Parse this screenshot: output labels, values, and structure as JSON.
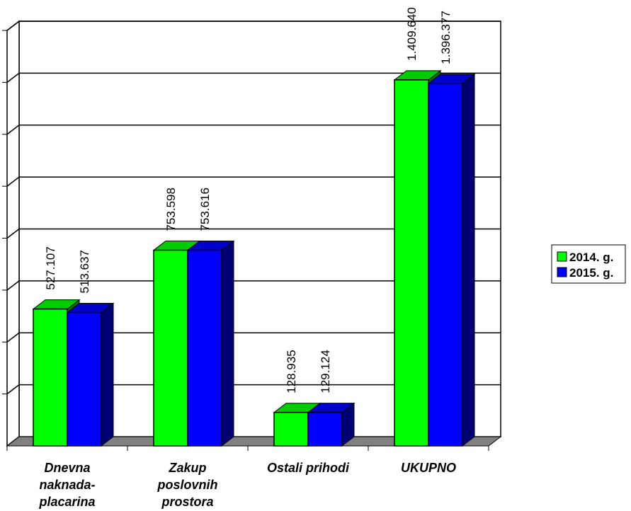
{
  "chart_data": {
    "type": "bar",
    "style": "3d-clustered-column",
    "categories": [
      [
        "Dnevna",
        "naknada-",
        "placarina"
      ],
      [
        "Zakup",
        "poslovnih",
        "prostora"
      ],
      [
        "Ostali prihodi"
      ],
      [
        "UKUPNO"
      ]
    ],
    "series": [
      {
        "name": "2014. g.",
        "color": "#00ff00",
        "values": [
          527107,
          753598,
          128935,
          1409640
        ],
        "labels": [
          "527.107",
          "753.598",
          "128.935",
          "1.409.640"
        ]
      },
      {
        "name": "2015. g.",
        "color": "#0000ff",
        "values": [
          513637,
          753616,
          129124,
          1396377
        ],
        "labels": [
          "513.637",
          "753.616",
          "129.124",
          "1.396.377"
        ]
      }
    ],
    "ylim": [
      0,
      1600000
    ],
    "y_tick_step": 200000,
    "grid": true,
    "legend": "right"
  }
}
